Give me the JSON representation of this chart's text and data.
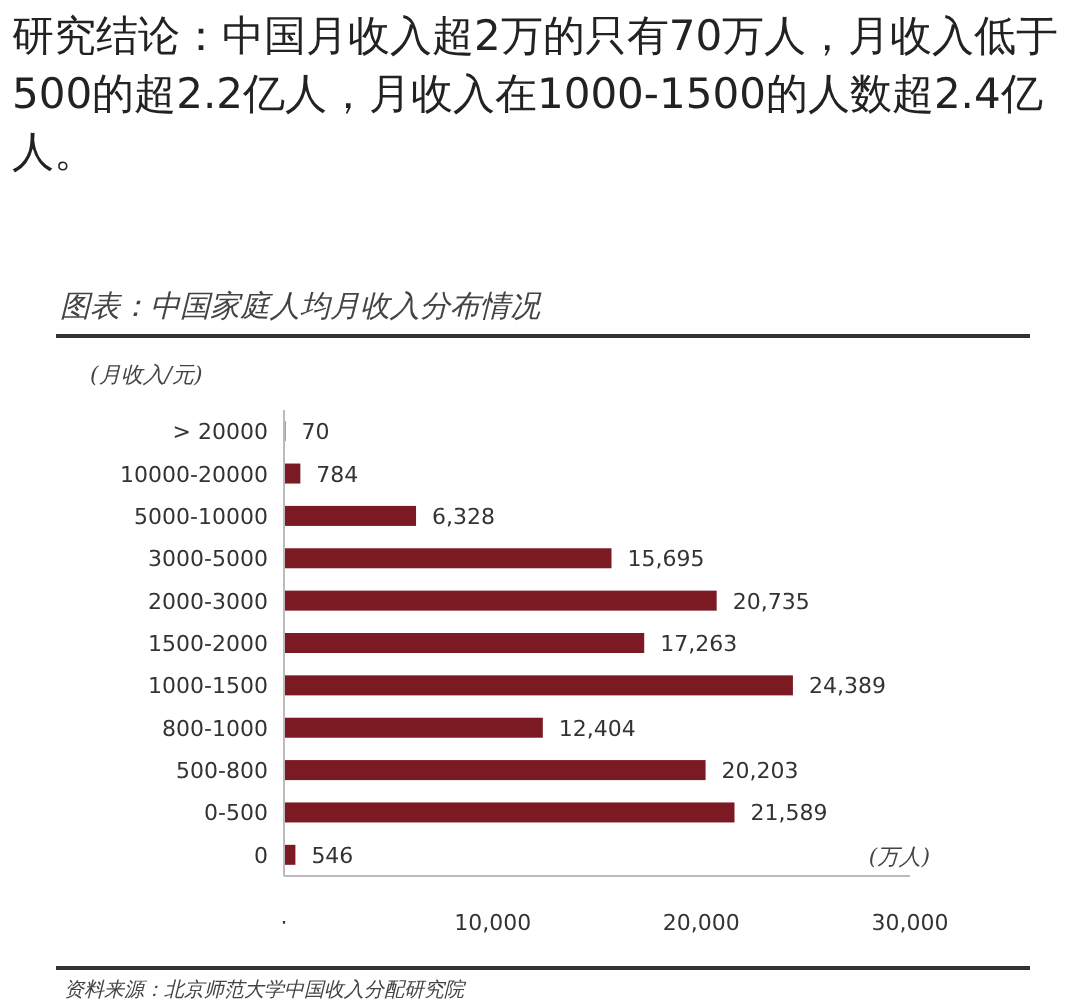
{
  "chart_data": {
    "type": "bar",
    "orientation": "horizontal",
    "title": "研究结论：中国月收入超2万的只有70万人，月收入低于500的超2.2亿人，月收入在1000-1500的人数超2.4亿人。",
    "subtitle": "图表：中国家庭人均月收入分布情况",
    "ylabel": "(月收入/元)",
    "xlabel": "(万人)",
    "categories": [
      "> 20000",
      "10000-20000",
      "5000-10000",
      "3000-5000",
      "2000-3000",
      "1500-2000",
      "1000-1500",
      "800-1000",
      "500-800",
      "0-500",
      "0"
    ],
    "values": [
      70,
      784,
      6328,
      15695,
      20735,
      17263,
      24389,
      12404,
      20203,
      21589,
      546
    ],
    "value_labels": [
      "70",
      "784",
      "6,328",
      "15,695",
      "20,735",
      "17,263",
      "24,389",
      "12,404",
      "20,203",
      "21,589",
      "546"
    ],
    "color": "#7b1a22",
    "xlim": [
      0,
      30000
    ],
    "xticks": [
      {
        "value": 0,
        "label": "·"
      },
      {
        "value": 10000,
        "label": "10,000"
      },
      {
        "value": 20000,
        "label": "20,000"
      },
      {
        "value": 30000,
        "label": "30,000"
      }
    ],
    "annotations": [
      "资料来源：北京师范大学中国收入分配研究院"
    ]
  }
}
